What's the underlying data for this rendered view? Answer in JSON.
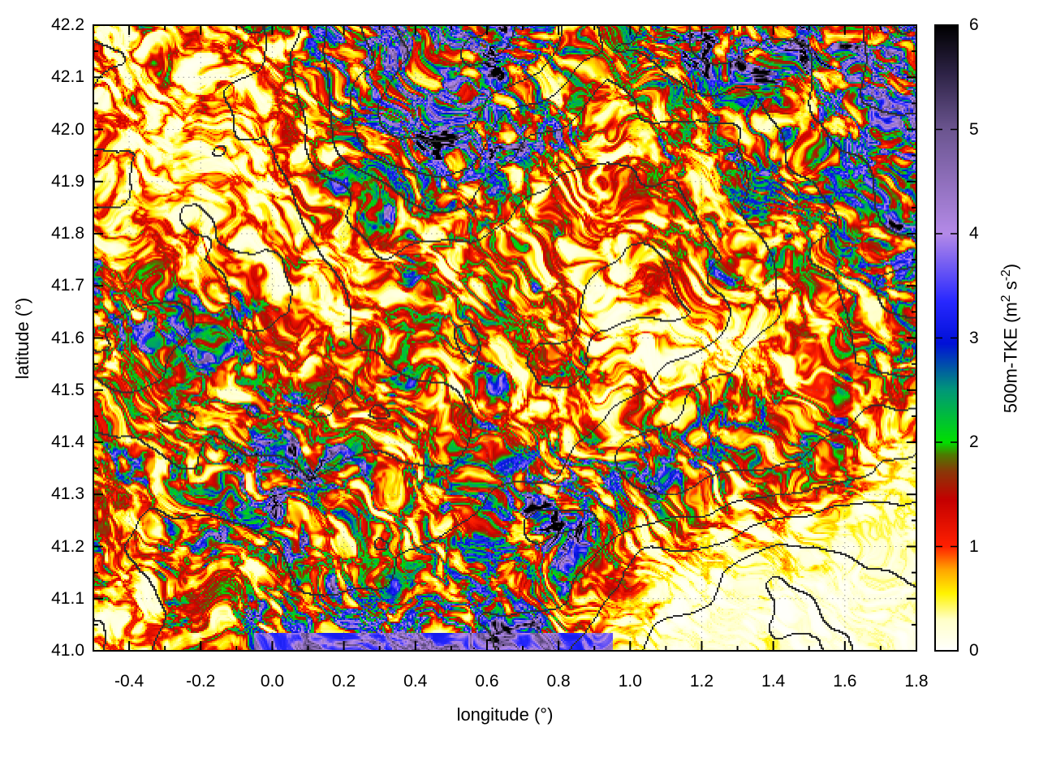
{
  "chart_data": {
    "type": "heatmap",
    "title": "",
    "xlabel": "longitude (°)",
    "ylabel": "latitude (°)",
    "colorbar_label": {
      "text": "500m-TKE (m2 s-2)",
      "parts": [
        {
          "text": "500m-TKE (m"
        },
        {
          "text": "2",
          "superscript": true
        },
        {
          "text": " s"
        },
        {
          "text": "-2",
          "superscript": true
        },
        {
          "text": ")"
        }
      ]
    },
    "x_range": [
      -0.5,
      1.8
    ],
    "y_range": [
      41.0,
      42.2
    ],
    "z_range": [
      0,
      6
    ],
    "x_ticks": [
      "-0.4",
      "-0.2",
      "0.0",
      "0.2",
      "0.4",
      "0.6",
      "0.8",
      "1.0",
      "1.2",
      "1.4",
      "1.6",
      "1.8"
    ],
    "y_ticks": [
      "41.0",
      "41.1",
      "41.2",
      "41.3",
      "41.4",
      "41.5",
      "41.6",
      "41.7",
      "41.8",
      "41.9",
      "42.0",
      "42.1",
      "42.2"
    ],
    "colorbar_ticks": [
      "0",
      "1",
      "2",
      "3",
      "4",
      "5",
      "6"
    ],
    "x_minor_step": 0.1,
    "y_minor_step": 0.05,
    "grid": {
      "show": true,
      "style": "dotted",
      "color": "#7a7a7a"
    },
    "palette": [
      [
        0.0,
        "#ffffff"
      ],
      [
        0.3,
        "#ffffc8"
      ],
      [
        0.55,
        "#fff400"
      ],
      [
        0.78,
        "#ffa400"
      ],
      [
        1.0,
        "#ff2000"
      ],
      [
        1.45,
        "#c40000"
      ],
      [
        1.72,
        "#8a3808"
      ],
      [
        1.88,
        "#4d7a00"
      ],
      [
        2.0,
        "#00e000"
      ],
      [
        2.5,
        "#009878"
      ],
      [
        2.95,
        "#0010d8"
      ],
      [
        3.35,
        "#2828ff"
      ],
      [
        4.0,
        "#b48ae8"
      ],
      [
        5.0,
        "#6b5590"
      ],
      [
        5.55,
        "#2c2244"
      ],
      [
        6.0,
        "#000000"
      ]
    ],
    "field_description": "500 m turbulent kinetic energy field over NE Spain with terrain elevation contours overlaid",
    "tke_regional_grid": {
      "comment": "approximate regional TKE intensity (m2 s-2), 12 lon cols (-0.5..1.8) x 12 lat rows (42.2..41.0, north to south)",
      "values": [
        [
          1.6,
          0.8,
          1.5,
          4.5,
          5.2,
          5.0,
          3.6,
          2.2,
          4.0,
          4.5,
          4.0,
          5.2
        ],
        [
          1.6,
          1.0,
          1.4,
          3.0,
          5.0,
          4.8,
          3.0,
          2.0,
          2.6,
          3.4,
          4.2,
          5.0
        ],
        [
          1.2,
          0.9,
          1.2,
          2.2,
          4.2,
          4.6,
          2.4,
          1.6,
          2.2,
          3.0,
          3.4,
          4.6
        ],
        [
          1.4,
          1.2,
          1.5,
          1.8,
          2.6,
          3.4,
          2.0,
          1.4,
          2.4,
          3.2,
          3.0,
          4.2
        ],
        [
          2.0,
          1.6,
          1.2,
          1.0,
          1.6,
          2.2,
          1.8,
          1.6,
          2.0,
          2.6,
          2.4,
          4.0
        ],
        [
          2.6,
          2.4,
          1.6,
          1.4,
          2.4,
          2.8,
          2.2,
          1.2,
          1.0,
          1.4,
          2.0,
          3.2
        ],
        [
          2.2,
          2.8,
          2.0,
          1.8,
          2.2,
          3.0,
          1.8,
          1.6,
          1.0,
          0.8,
          1.8,
          3.0
        ],
        [
          2.4,
          2.6,
          2.8,
          1.8,
          1.6,
          1.8,
          1.4,
          1.0,
          3.2,
          3.8,
          2.4,
          1.2
        ],
        [
          2.0,
          2.2,
          4.2,
          3.2,
          3.0,
          3.2,
          4.2,
          4.4,
          4.2,
          2.6,
          2.8,
          0.8
        ],
        [
          1.8,
          3.2,
          3.8,
          3.0,
          2.6,
          3.0,
          4.6,
          3.2,
          2.2,
          1.6,
          0.8,
          0.5
        ],
        [
          1.5,
          1.8,
          2.0,
          2.2,
          2.4,
          3.8,
          2.8,
          1.2,
          0.6,
          0.4,
          0.4,
          0.4
        ],
        [
          1.2,
          1.6,
          3.5,
          4.5,
          4.2,
          4.0,
          3.0,
          1.0,
          0.4,
          0.3,
          0.3,
          0.4
        ]
      ]
    },
    "bottom_band": {
      "lat_max": 41.035,
      "lon_range": [
        -0.05,
        0.95
      ],
      "value": 4.2
    },
    "terrain_grid": {
      "comment": "relative elevation used for the black contour overlay, same grid layout",
      "values": [
        [
          0.3,
          0.3,
          0.4,
          0.7,
          0.9,
          0.9,
          0.8,
          0.6,
          0.7,
          0.8,
          0.9,
          1.0
        ],
        [
          0.3,
          0.3,
          0.4,
          0.6,
          0.9,
          0.9,
          0.7,
          0.5,
          0.6,
          0.7,
          0.9,
          1.0
        ],
        [
          0.2,
          0.3,
          0.3,
          0.5,
          0.7,
          0.8,
          0.6,
          0.5,
          0.5,
          0.6,
          0.8,
          0.9
        ],
        [
          0.2,
          0.2,
          0.3,
          0.4,
          0.5,
          0.6,
          0.5,
          0.4,
          0.5,
          0.6,
          0.7,
          0.9
        ],
        [
          0.3,
          0.2,
          0.2,
          0.3,
          0.4,
          0.4,
          0.4,
          0.4,
          0.4,
          0.5,
          0.7,
          0.8
        ],
        [
          0.3,
          0.3,
          0.2,
          0.2,
          0.3,
          0.4,
          0.4,
          0.3,
          0.4,
          0.5,
          0.6,
          0.8
        ],
        [
          0.4,
          0.3,
          0.3,
          0.2,
          0.3,
          0.4,
          0.3,
          0.4,
          0.5,
          0.6,
          0.6,
          0.7
        ],
        [
          0.4,
          0.4,
          0.3,
          0.2,
          0.2,
          0.3,
          0.4,
          0.5,
          0.6,
          0.7,
          0.6,
          0.5
        ],
        [
          0.5,
          0.4,
          0.4,
          0.3,
          0.3,
          0.4,
          0.5,
          0.6,
          0.7,
          0.6,
          0.5,
          0.4
        ],
        [
          0.5,
          0.5,
          0.4,
          0.4,
          0.4,
          0.5,
          0.6,
          0.6,
          0.5,
          0.4,
          0.3,
          0.3
        ],
        [
          0.5,
          0.5,
          0.5,
          0.4,
          0.5,
          0.6,
          0.5,
          0.4,
          0.3,
          0.2,
          0.2,
          0.2
        ],
        [
          0.4,
          0.5,
          0.5,
          0.6,
          0.6,
          0.5,
          0.4,
          0.3,
          0.2,
          0.2,
          0.1,
          0.1
        ]
      ]
    },
    "contours": {
      "step": 0.55,
      "color": "#2e2e2e"
    },
    "frame_color": "#000000"
  }
}
